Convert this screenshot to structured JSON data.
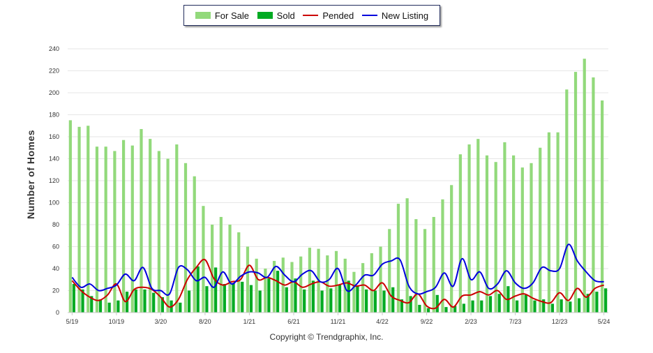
{
  "chart_data": {
    "type": "bar",
    "title": "",
    "ylabel": "Number of Homes",
    "xlabel": "",
    "ylim": [
      0,
      240
    ],
    "yticks": [
      0,
      20,
      40,
      60,
      80,
      100,
      120,
      140,
      160,
      180,
      200,
      220,
      240
    ],
    "grid": true,
    "legend_position": "top-center",
    "x_tick_labels": [
      "5/19",
      "10/19",
      "3/20",
      "8/20",
      "1/21",
      "6/21",
      "11/21",
      "4/22",
      "9/22",
      "2/23",
      "7/23",
      "12/23",
      "5/24"
    ],
    "x_tick_every": 5,
    "n_months": 61,
    "series": [
      {
        "name": "For Sale",
        "kind": "bar",
        "color": "#92d97b",
        "values": [
          175,
          169,
          170,
          151,
          151,
          147,
          157,
          152,
          167,
          158,
          147,
          140,
          153,
          136,
          124,
          97,
          80,
          87,
          80,
          73,
          60,
          49,
          40,
          47,
          50,
          46,
          51,
          59,
          58,
          52,
          56,
          49,
          37,
          45,
          54,
          60,
          76,
          99,
          104,
          85,
          76,
          87,
          103,
          116,
          144,
          153,
          158,
          143,
          137,
          155,
          143,
          132,
          136,
          150,
          164,
          164,
          203,
          219,
          231,
          214,
          193
        ]
      },
      {
        "name": "Sold",
        "kind": "bar",
        "color": "#00aa22",
        "values": [
          26,
          21,
          15,
          12,
          9,
          11,
          19,
          21,
          21,
          18,
          14,
          11,
          9,
          20,
          42,
          24,
          41,
          26,
          27,
          28,
          25,
          20,
          31,
          38,
          23,
          31,
          21,
          29,
          20,
          22,
          25,
          29,
          24,
          21,
          20,
          20,
          23,
          12,
          15,
          7,
          4,
          16,
          5,
          6,
          8,
          11,
          11,
          15,
          17,
          24,
          11,
          16,
          11,
          12,
          8,
          12,
          10,
          13,
          17,
          19,
          22
        ]
      },
      {
        "name": "Pended",
        "kind": "line",
        "color": "#cc0000",
        "values": [
          29,
          20,
          14,
          11,
          16,
          26,
          10,
          21,
          23,
          21,
          14,
          5,
          12,
          30,
          41,
          48,
          31,
          25,
          28,
          30,
          43,
          30,
          32,
          29,
          25,
          28,
          23,
          26,
          28,
          24,
          25,
          27,
          24,
          25,
          20,
          27,
          15,
          11,
          9,
          17,
          6,
          4,
          12,
          5,
          15,
          16,
          19,
          16,
          20,
          12,
          15,
          17,
          13,
          10,
          9,
          18,
          11,
          22,
          14,
          22,
          25
        ]
      },
      {
        "name": "New Listing",
        "kind": "line",
        "color": "#0000dd",
        "values": [
          32,
          23,
          26,
          20,
          22,
          25,
          35,
          29,
          41,
          22,
          20,
          17,
          41,
          39,
          29,
          32,
          23,
          37,
          26,
          33,
          37,
          36,
          32,
          42,
          34,
          28,
          35,
          38,
          28,
          30,
          40,
          20,
          25,
          34,
          34,
          44,
          47,
          48,
          24,
          17,
          19,
          23,
          36,
          24,
          49,
          30,
          37,
          22,
          26,
          38,
          27,
          22,
          27,
          41,
          38,
          40,
          62,
          47,
          37,
          29,
          28
        ]
      }
    ]
  },
  "legend": {
    "for_sale": "For Sale",
    "sold": "Sold",
    "pended": "Pended",
    "new_listing": "New Listing"
  },
  "footer": {
    "copyright": "Copyright © Trendgraphix, Inc."
  },
  "colors": {
    "for_sale": "#92d97b",
    "sold": "#00aa22",
    "pended": "#cc0000",
    "new_listing": "#0000dd",
    "grid": "#e6e6e6"
  }
}
